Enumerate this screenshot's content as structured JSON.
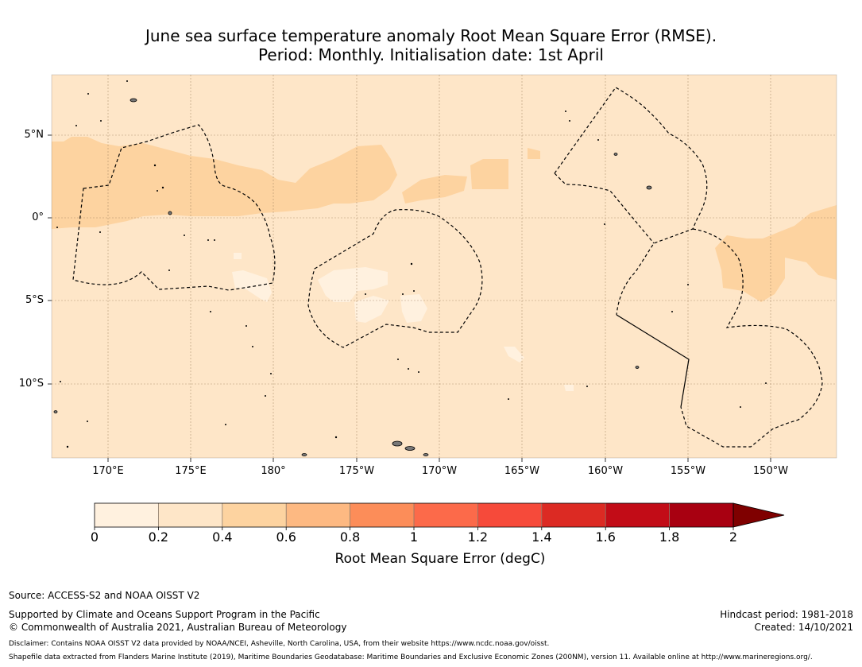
{
  "title": {
    "line1": "June sea surface temperature anomaly Root Mean Square Error (RMSE).",
    "line2": "Period: Monthly. Initialisation date: 1st April"
  },
  "map": {
    "lat_labels": [
      "5°N",
      "0°",
      "5°S",
      "10°S"
    ],
    "lon_labels": [
      "170°E",
      "175°E",
      "180°",
      "175°W",
      "170°W",
      "165°W",
      "160°W",
      "155°W",
      "150°W"
    ],
    "colors": {
      "ocean_base": "#fee6c8",
      "lighter_patch": "#fff1df",
      "darker_patch": "#fdd3a0",
      "land": "#777777",
      "boundary": "#000000"
    }
  },
  "colorbar": {
    "ticks": [
      "0",
      "0.2",
      "0.4",
      "0.6",
      "0.8",
      "1",
      "1.2",
      "1.4",
      "1.6",
      "1.8",
      "2"
    ],
    "colors": [
      "#fff1df",
      "#fee6c8",
      "#fdd3a0",
      "#fdb982",
      "#fc8d59",
      "#fc6a4a",
      "#f64a3a",
      "#dc2a23",
      "#c20c17",
      "#a80011",
      "#7f0000"
    ],
    "label": "Root Mean Square Error (degC)"
  },
  "footer": {
    "source": "Source: ACCESS-S2 and NOAA OISST V2",
    "support": "Supported by Climate and Oceans Support Program in the Pacific",
    "copyright": "© Commonwealth of Australia 2021, Australian Bureau of Meteorology",
    "hindcast": "Hindcast period: 1981-2018",
    "created": "Created: 14/10/2021",
    "disclaimer": "Disclaimer: Contains NOAA OISST V2 data provided by NOAA/NCEI, Asheville, North Carolina, USA, from their website https://www.ncdc.noaa.gov/oisst.",
    "shapefile": "Shapefile data extracted from Flanders Marine Institute (2019), Maritime Boundaries Geodatabase: Maritime Boundaries and Exclusive Economic Zones (200NM), version 11. Available online at http://www.marineregions.org/."
  }
}
